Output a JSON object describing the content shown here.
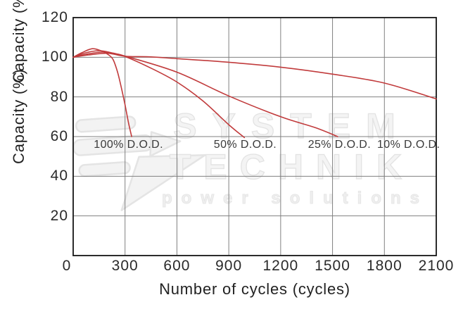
{
  "colors": {
    "curve": "#c13b3c",
    "grid": "#808080",
    "axis": "#151515",
    "text": "#2a2a2a",
    "watermark": "#e8e8e8"
  },
  "watermark": {
    "line1": "SYSTEM",
    "line2": "TECHNIK",
    "line3": "power solutions"
  },
  "chart_data": {
    "type": "line",
    "title": "",
    "xlabel": "Number of cycles (cycles)",
    "ylabel": "Capacity (%)",
    "xlim": [
      0,
      2100
    ],
    "ylim": [
      0,
      120
    ],
    "x_ticks": [
      0,
      300,
      600,
      900,
      1200,
      1500,
      1800,
      2100
    ],
    "y_ticks": [
      20,
      40,
      60,
      80,
      100,
      120
    ],
    "grid": true,
    "legend_position": "none",
    "series": [
      {
        "name": "100% D.O.D.",
        "points": [
          [
            0,
            100
          ],
          [
            50,
            102.3
          ],
          [
            110,
            104.3
          ],
          [
            160,
            103.3
          ],
          [
            200,
            101.5
          ],
          [
            230,
            99
          ],
          [
            255,
            93
          ],
          [
            275,
            86
          ],
          [
            300,
            76
          ],
          [
            320,
            67
          ],
          [
            338,
            60
          ]
        ]
      },
      {
        "name": "50% D.O.D.",
        "points": [
          [
            0,
            100
          ],
          [
            70,
            102.2
          ],
          [
            150,
            103.3
          ],
          [
            220,
            102.3
          ],
          [
            300,
            100.4
          ],
          [
            450,
            94.5
          ],
          [
            600,
            87.5
          ],
          [
            750,
            78
          ],
          [
            900,
            66
          ],
          [
            990,
            59.5
          ]
        ]
      },
      {
        "name": "25% D.O.D.",
        "points": [
          [
            0,
            100
          ],
          [
            80,
            101.6
          ],
          [
            170,
            102.6
          ],
          [
            250,
            101.6
          ],
          [
            300,
            100.6
          ],
          [
            600,
            92.5
          ],
          [
            900,
            80.5
          ],
          [
            1200,
            70
          ],
          [
            1400,
            64.5
          ],
          [
            1530,
            60
          ]
        ]
      },
      {
        "name": "10% D.O.D.",
        "points": [
          [
            0,
            100
          ],
          [
            90,
            101.2
          ],
          [
            200,
            102
          ],
          [
            300,
            100.5
          ],
          [
            450,
            100.2
          ],
          [
            600,
            99.3
          ],
          [
            900,
            97.5
          ],
          [
            1200,
            95
          ],
          [
            1500,
            91.5
          ],
          [
            1800,
            87
          ],
          [
            2100,
            79
          ]
        ]
      }
    ],
    "annotations": [
      {
        "text": "100% D.O.D.",
        "x": 320,
        "y": 55.5
      },
      {
        "text": "50% D.O.D.",
        "x": 995,
        "y": 55.5
      },
      {
        "text": "25% D.O.D.",
        "x": 1540,
        "y": 55.5
      },
      {
        "text": "10% D.O.D.",
        "x": 1940,
        "y": 55.5
      }
    ]
  }
}
